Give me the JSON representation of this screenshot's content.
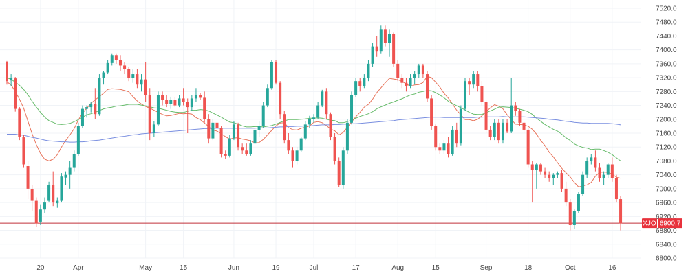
{
  "chart_data": {
    "type": "candlestick",
    "symbol": "XJO",
    "last_price": "6900.7",
    "ylim": [
      6800,
      7520
    ],
    "y_ticks": [
      "7520.0",
      "7480.0",
      "7440.0",
      "7400.0",
      "7360.0",
      "7320.0",
      "7280.0",
      "7240.0",
      "7200.0",
      "7160.0",
      "7120.0",
      "7080.0",
      "7040.0",
      "7000.0",
      "6960.0",
      "6920.0",
      "6880.0",
      "6840.0",
      "6800.0"
    ],
    "x_ticks": [
      {
        "label": "20",
        "bar": 8
      },
      {
        "label": "Apr",
        "bar": 17
      },
      {
        "label": "May",
        "bar": 33
      },
      {
        "label": "15",
        "bar": 42
      },
      {
        "label": "Jun",
        "bar": 54
      },
      {
        "label": "19",
        "bar": 64
      },
      {
        "label": "Jul",
        "bar": 73
      },
      {
        "label": "17",
        "bar": 83
      },
      {
        "label": "Aug",
        "bar": 93
      },
      {
        "label": "15",
        "bar": 102
      },
      {
        "label": "Sep",
        "bar": 114
      },
      {
        "label": "18",
        "bar": 124
      },
      {
        "label": "Oct",
        "bar": 134
      },
      {
        "label": "16",
        "bar": 144
      }
    ],
    "up_color": "#26a69a",
    "down_color": "#ef5350",
    "grid": true,
    "series": [
      {
        "color": "#e8735a",
        "values": [
          7308,
          7299,
          7280,
          7258,
          7232,
          7195,
          7158,
          7127,
          7101,
          7085,
          7080,
          7085,
          7098,
          7120,
          7139,
          7155,
          7173,
          7198,
          7218,
          7232,
          7246,
          7256,
          7265,
          7275,
          7286,
          7288,
          7287,
          7286,
          7283,
          7279,
          7265,
          7253,
          7244,
          7237,
          7232,
          7226,
          7220,
          7214,
          7210,
          7211,
          7214,
          7217,
          7216,
          7217,
          7215,
          7205,
          7199,
          7189,
          7179,
          7169,
          7166,
          7158,
          7150,
          7143,
          7146,
          7147,
          7143,
          7141,
          7138,
          7132,
          7133,
          7142,
          7155,
          7168,
          7181,
          7189,
          7190,
          7176,
          7170,
          7169,
          7174,
          7177,
          7181,
          7191,
          7193,
          7190,
          7182,
          7172,
          7167,
          7155,
          7162,
          7177,
          7192,
          7207,
          7220,
          7235,
          7243,
          7258,
          7277,
          7291,
          7305,
          7318,
          7316,
          7314,
          7309,
          7302,
          7295,
          7299,
          7300,
          7306,
          7324,
          7320,
          7307,
          7293,
          7275,
          7261,
          7244,
          7226,
          7213,
          7199,
          7199,
          7196,
          7200,
          7210,
          7222,
          7233,
          7242,
          7238,
          7230,
          7213,
          7199,
          7186,
          7185,
          7184,
          7180,
          7171,
          7157,
          7139,
          7124,
          7105,
          7092,
          7075,
          7059,
          7046,
          7034,
          7018,
          7005,
          7008,
          7011,
          7018,
          7036,
          7047,
          7048,
          7047,
          7042,
          7033,
          7030
        ]
      },
      {
        "color": "#66bb6a",
        "values": [
          7320,
          7315,
          7307,
          7298,
          7286,
          7271,
          7252,
          7235,
          7220,
          7206,
          7196,
          7191,
          7186,
          7185,
          7186,
          7188,
          7193,
          7199,
          7206,
          7213,
          7216,
          7220,
          7225,
          7230,
          7233,
          7235,
          7238,
          7239,
          7241,
          7243,
          7243,
          7243,
          7241,
          7239,
          7236,
          7233,
          7232,
          7229,
          7226,
          7223,
          7221,
          7220,
          7220,
          7223,
          7226,
          7226,
          7228,
          7227,
          7224,
          7218,
          7212,
          7206,
          7199,
          7192,
          7190,
          7186,
          7181,
          7178,
          7178,
          7179,
          7179,
          7178,
          7180,
          7182,
          7186,
          7191,
          7195,
          7199,
          7199,
          7199,
          7200,
          7201,
          7203,
          7203,
          7204,
          7203,
          7200,
          7197,
          7196,
          7190,
          7190,
          7193,
          7198,
          7203,
          7208,
          7212,
          7216,
          7222,
          7230,
          7236,
          7241,
          7246,
          7250,
          7255,
          7259,
          7265,
          7270,
          7273,
          7278,
          7280,
          7283,
          7282,
          7277,
          7270,
          7262,
          7252,
          7245,
          7239,
          7233,
          7227,
          7220,
          7215,
          7214,
          7214,
          7219,
          7224,
          7229,
          7235,
          7236,
          7235,
          7234,
          7232,
          7229,
          7226,
          7222,
          7214,
          7203,
          7194,
          7185,
          7178,
          7171,
          7166,
          7157,
          7147,
          7139,
          7129,
          7123,
          7119,
          7117,
          7113,
          7114,
          7114,
          7110,
          7105,
          7098,
          7089,
          7080
        ]
      },
      {
        "color": "#7a8fe0",
        "values": [
          7157,
          7157,
          7157,
          7155,
          7154,
          7151,
          7148,
          7146,
          7143,
          7140,
          7138,
          7137,
          7136,
          7135,
          7135,
          7134,
          7134,
          7135,
          7135,
          7136,
          7138,
          7139,
          7140,
          7142,
          7144,
          7146,
          7148,
          7150,
          7151,
          7153,
          7155,
          7156,
          7158,
          7159,
          7160,
          7161,
          7162,
          7163,
          7164,
          7165,
          7166,
          7167,
          7168,
          7169,
          7170,
          7171,
          7172,
          7173,
          7173,
          7174,
          7174,
          7174,
          7174,
          7174,
          7174,
          7174,
          7174,
          7174,
          7174,
          7174,
          7175,
          7175,
          7175,
          7176,
          7177,
          7178,
          7178,
          7179,
          7179,
          7180,
          7180,
          7181,
          7181,
          7182,
          7183,
          7184,
          7184,
          7184,
          7185,
          7185,
          7186,
          7186,
          7187,
          7187,
          7188,
          7189,
          7190,
          7191,
          7192,
          7193,
          7194,
          7195,
          7196,
          7198,
          7199,
          7200,
          7201,
          7202,
          7203,
          7204,
          7205,
          7206,
          7206,
          7206,
          7205,
          7205,
          7205,
          7205,
          7205,
          7205,
          7205,
          7205,
          7206,
          7206,
          7207,
          7207,
          7207,
          7207,
          7208,
          7207,
          7207,
          7207,
          7207,
          7207,
          7206,
          7205,
          7204,
          7203,
          7202,
          7200,
          7199,
          7198,
          7196,
          7194,
          7193,
          7191,
          7190,
          7189,
          7189,
          7188,
          7188,
          7188,
          7188,
          7188,
          7187,
          7186,
          7184
        ]
      }
    ],
    "candles": [
      [
        7365,
        7368,
        7300,
        7310
      ],
      [
        7312,
        7330,
        7295,
        7320
      ],
      [
        7318,
        7322,
        7222,
        7230
      ],
      [
        7230,
        7235,
        7140,
        7150
      ],
      [
        7148,
        7155,
        7060,
        7070
      ],
      [
        7065,
        7080,
        6970,
        7000
      ],
      [
        6998,
        7010,
        6935,
        6965
      ],
      [
        6965,
        6975,
        6890,
        6900
      ],
      [
        6905,
        6955,
        6895,
        6940
      ],
      [
        6940,
        6975,
        6930,
        6960
      ],
      [
        6965,
        7020,
        6960,
        7010
      ],
      [
        7010,
        7050,
        6950,
        6960
      ],
      [
        6958,
        6975,
        6945,
        6965
      ],
      [
        6965,
        7045,
        6960,
        7035
      ],
      [
        7032,
        7050,
        7010,
        7040
      ],
      [
        7040,
        7080,
        7000,
        7060
      ],
      [
        7060,
        7110,
        7050,
        7100
      ],
      [
        7100,
        7190,
        7095,
        7180
      ],
      [
        7180,
        7240,
        7175,
        7230
      ],
      [
        7230,
        7240,
        7205,
        7235
      ],
      [
        7235,
        7250,
        7220,
        7245
      ],
      [
        7245,
        7290,
        7200,
        7215
      ],
      [
        7215,
        7330,
        7210,
        7320
      ],
      [
        7320,
        7340,
        7300,
        7335
      ],
      [
        7335,
        7370,
        7330,
        7362
      ],
      [
        7362,
        7390,
        7355,
        7385
      ],
      [
        7385,
        7390,
        7360,
        7370
      ],
      [
        7370,
        7385,
        7340,
        7355
      ],
      [
        7355,
        7365,
        7330,
        7345
      ],
      [
        7345,
        7350,
        7310,
        7320
      ],
      [
        7320,
        7345,
        7305,
        7330
      ],
      [
        7330,
        7345,
        7290,
        7300
      ],
      [
        7300,
        7330,
        7280,
        7315
      ],
      [
        7315,
        7365,
        7250,
        7270
      ],
      [
        7270,
        7290,
        7140,
        7160
      ],
      [
        7160,
        7195,
        7150,
        7185
      ],
      [
        7185,
        7280,
        7180,
        7270
      ],
      [
        7270,
        7280,
        7240,
        7255
      ],
      [
        7255,
        7270,
        7235,
        7245
      ],
      [
        7245,
        7265,
        7230,
        7255
      ],
      [
        7255,
        7265,
        7235,
        7240
      ],
      [
        7240,
        7270,
        7235,
        7260
      ],
      [
        7260,
        7290,
        7240,
        7250
      ],
      [
        7250,
        7260,
        7160,
        7235
      ],
      [
        7235,
        7270,
        7225,
        7260
      ],
      [
        7260,
        7290,
        7250,
        7270
      ],
      [
        7270,
        7275,
        7255,
        7262
      ],
      [
        7262,
        7280,
        7190,
        7200
      ],
      [
        7200,
        7215,
        7130,
        7145
      ],
      [
        7145,
        7200,
        7140,
        7190
      ],
      [
        7190,
        7200,
        7160,
        7175
      ],
      [
        7175,
        7180,
        7090,
        7100
      ],
      [
        7100,
        7110,
        7085,
        7095
      ],
      [
        7095,
        7155,
        7090,
        7145
      ],
      [
        7145,
        7195,
        7140,
        7185
      ],
      [
        7185,
        7190,
        7110,
        7120
      ],
      [
        7120,
        7130,
        7100,
        7110
      ],
      [
        7110,
        7130,
        7095,
        7100
      ],
      [
        7100,
        7140,
        7095,
        7130
      ],
      [
        7130,
        7180,
        7120,
        7170
      ],
      [
        7170,
        7195,
        7150,
        7180
      ],
      [
        7180,
        7250,
        7175,
        7240
      ],
      [
        7240,
        7300,
        7235,
        7290
      ],
      [
        7290,
        7370,
        7285,
        7365
      ],
      [
        7365,
        7370,
        7300,
        7305
      ],
      [
        7305,
        7310,
        7200,
        7215
      ],
      [
        7215,
        7225,
        7130,
        7140
      ],
      [
        7140,
        7160,
        7100,
        7110
      ],
      [
        7110,
        7120,
        7060,
        7080
      ],
      [
        7080,
        7120,
        7070,
        7110
      ],
      [
        7110,
        7150,
        7105,
        7145
      ],
      [
        7145,
        7195,
        7140,
        7185
      ],
      [
        7185,
        7210,
        7175,
        7200
      ],
      [
        7200,
        7215,
        7190,
        7205
      ],
      [
        7205,
        7250,
        7200,
        7240
      ],
      [
        7240,
        7285,
        7235,
        7280
      ],
      [
        7280,
        7290,
        7200,
        7215
      ],
      [
        7215,
        7220,
        7140,
        7150
      ],
      [
        7150,
        7160,
        7070,
        7080
      ],
      [
        7080,
        7090,
        7005,
        7010
      ],
      [
        7010,
        7120,
        7000,
        7110
      ],
      [
        7110,
        7200,
        7100,
        7190
      ],
      [
        7190,
        7280,
        7185,
        7270
      ],
      [
        7270,
        7320,
        7265,
        7310
      ],
      [
        7310,
        7320,
        7280,
        7295
      ],
      [
        7295,
        7330,
        7290,
        7320
      ],
      [
        7320,
        7370,
        7310,
        7360
      ],
      [
        7360,
        7420,
        7350,
        7410
      ],
      [
        7410,
        7440,
        7380,
        7395
      ],
      [
        7395,
        7470,
        7390,
        7460
      ],
      [
        7460,
        7470,
        7410,
        7420
      ],
      [
        7420,
        7460,
        7380,
        7445
      ],
      [
        7445,
        7450,
        7350,
        7360
      ],
      [
        7360,
        7370,
        7310,
        7320
      ],
      [
        7320,
        7330,
        7290,
        7305
      ],
      [
        7305,
        7320,
        7280,
        7295
      ],
      [
        7295,
        7330,
        7290,
        7320
      ],
      [
        7320,
        7340,
        7300,
        7330
      ],
      [
        7330,
        7360,
        7320,
        7355
      ],
      [
        7355,
        7360,
        7320,
        7330
      ],
      [
        7330,
        7340,
        7250,
        7260
      ],
      [
        7260,
        7270,
        7170,
        7180
      ],
      [
        7180,
        7185,
        7110,
        7120
      ],
      [
        7120,
        7130,
        7100,
        7110
      ],
      [
        7110,
        7140,
        7100,
        7130
      ],
      [
        7130,
        7150,
        7090,
        7100
      ],
      [
        7100,
        7180,
        7095,
        7170
      ],
      [
        7170,
        7190,
        7120,
        7130
      ],
      [
        7130,
        7240,
        7125,
        7230
      ],
      [
        7230,
        7320,
        7225,
        7310
      ],
      [
        7310,
        7320,
        7270,
        7300
      ],
      [
        7300,
        7340,
        7290,
        7330
      ],
      [
        7330,
        7340,
        7280,
        7295
      ],
      [
        7295,
        7310,
        7240,
        7250
      ],
      [
        7250,
        7255,
        7160,
        7170
      ],
      [
        7170,
        7180,
        7140,
        7150
      ],
      [
        7150,
        7200,
        7140,
        7190
      ],
      [
        7190,
        7200,
        7130,
        7140
      ],
      [
        7140,
        7200,
        7130,
        7190
      ],
      [
        7190,
        7200,
        7160,
        7165
      ],
      [
        7165,
        7320,
        7160,
        7240
      ],
      [
        7240,
        7250,
        7210,
        7225
      ],
      [
        7225,
        7230,
        7180,
        7190
      ],
      [
        7190,
        7195,
        7160,
        7170
      ],
      [
        7170,
        7175,
        7060,
        7070
      ],
      [
        7070,
        7080,
        6960,
        7055
      ],
      [
        7055,
        7075,
        7000,
        7070
      ],
      [
        7070,
        7075,
        7040,
        7050
      ],
      [
        7050,
        7060,
        7030,
        7040
      ],
      [
        7040,
        7050,
        7020,
        7030
      ],
      [
        7030,
        7045,
        7010,
        7040
      ],
      [
        7040,
        7050,
        7030,
        7045
      ],
      [
        7045,
        7055,
        6990,
        7000
      ],
      [
        7000,
        7020,
        6950,
        6960
      ],
      [
        6960,
        6970,
        6880,
        6895
      ],
      [
        6895,
        6940,
        6885,
        6935
      ],
      [
        6935,
        6990,
        6930,
        6985
      ],
      [
        6985,
        7050,
        6980,
        7040
      ],
      [
        7040,
        7090,
        7030,
        7080
      ],
      [
        7080,
        7100,
        7070,
        7090
      ],
      [
        7090,
        7110,
        7050,
        7060
      ],
      [
        7060,
        7075,
        7020,
        7030
      ],
      [
        7030,
        7050,
        7010,
        7040
      ],
      [
        7040,
        7075,
        7030,
        7070
      ],
      [
        7070,
        7090,
        7020,
        7030
      ],
      [
        7030,
        7040,
        6960,
        6970
      ],
      [
        6970,
        6980,
        6880,
        6900
      ]
    ]
  }
}
